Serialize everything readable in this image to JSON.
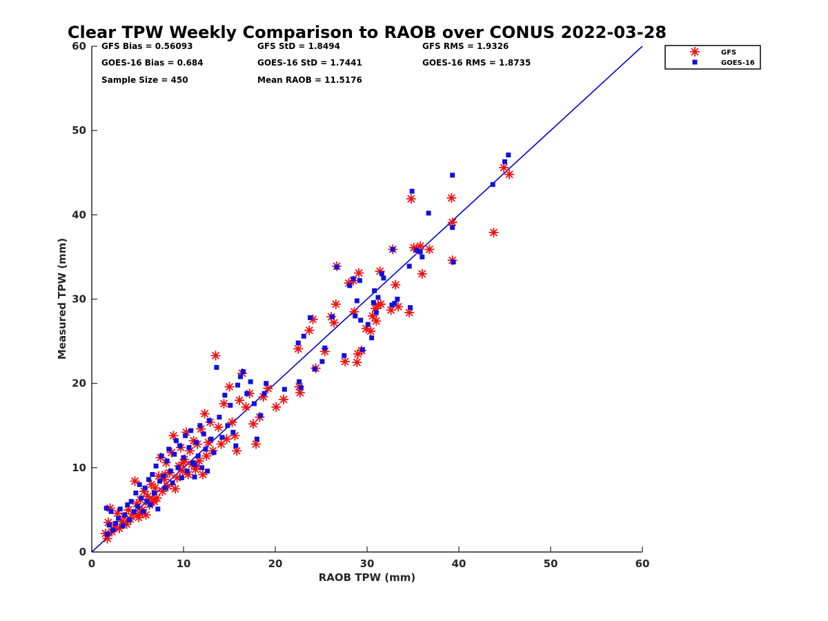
{
  "chart_data": {
    "type": "scatter",
    "title": "Clear TPW Weekly Comparison to RAOB over CONUS 2022-03-28",
    "xlabel": "RAOB TPW (mm)",
    "ylabel": "Measured TPW (mm)",
    "xlim": [
      0,
      60
    ],
    "ylim": [
      0,
      60
    ],
    "xticks": [
      "0",
      "10",
      "20",
      "30",
      "40",
      "50",
      "60"
    ],
    "yticks": [
      "0",
      "10",
      "20",
      "30",
      "40",
      "50",
      "60"
    ],
    "grid": false,
    "legend_position": "top-right outside",
    "reference_line": {
      "type": "identity",
      "color": "#0000cc"
    },
    "stats": {
      "gfs_bias": "GFS Bias = 0.56093",
      "goes_bias": "GOES-16 Bias = 0.684",
      "sample_size": "Sample Size = 450",
      "gfs_std": "GFS StD = 1.8494",
      "goes_std": "GOES-16 StD = 1.7441",
      "mean_raob": "Mean RAOB = 11.5176",
      "gfs_rms": "GFS RMS = 1.9326",
      "goes_rms": "GOES-16 RMS = 1.8735"
    },
    "series": [
      {
        "name": "GFS",
        "marker": "asterisk",
        "color": "#ee1111",
        "points": [
          [
            1.5,
            2.2
          ],
          [
            1.7,
            1.6
          ],
          [
            1.8,
            3.5
          ],
          [
            2.0,
            5.2
          ],
          [
            2.2,
            2.4
          ],
          [
            2.5,
            3.0
          ],
          [
            2.8,
            4.6
          ],
          [
            3.0,
            2.8
          ],
          [
            3.3,
            3.6
          ],
          [
            3.5,
            4.2
          ],
          [
            3.8,
            3.3
          ],
          [
            4.0,
            5.0
          ],
          [
            4.2,
            3.9
          ],
          [
            4.5,
            4.5
          ],
          [
            4.7,
            8.4
          ],
          [
            4.9,
            5.7
          ],
          [
            5.1,
            4.1
          ],
          [
            5.3,
            6.2
          ],
          [
            5.5,
            5.0
          ],
          [
            5.7,
            7.2
          ],
          [
            5.9,
            4.4
          ],
          [
            6.1,
            6.6
          ],
          [
            6.3,
            5.6
          ],
          [
            6.5,
            8.0
          ],
          [
            6.7,
            6.1
          ],
          [
            6.9,
            7.6
          ],
          [
            7.1,
            6.4
          ],
          [
            7.3,
            9.0
          ],
          [
            7.5,
            11.2
          ],
          [
            7.7,
            7.2
          ],
          [
            7.9,
            8.6
          ],
          [
            8.1,
            10.6
          ],
          [
            8.3,
            7.8
          ],
          [
            8.5,
            9.4
          ],
          [
            8.7,
            11.8
          ],
          [
            8.9,
            13.8
          ],
          [
            9.1,
            7.5
          ],
          [
            9.3,
            8.8
          ],
          [
            9.5,
            10.2
          ],
          [
            9.7,
            12.4
          ],
          [
            9.9,
            9.6
          ],
          [
            10.1,
            11.0
          ],
          [
            10.3,
            14.2
          ],
          [
            10.5,
            9.2
          ],
          [
            10.7,
            12.0
          ],
          [
            10.9,
            10.4
          ],
          [
            11.1,
            13.2
          ],
          [
            11.3,
            9.8
          ],
          [
            11.5,
            12.8
          ],
          [
            11.7,
            10.8
          ],
          [
            11.9,
            14.6
          ],
          [
            12.1,
            9.2
          ],
          [
            12.3,
            16.4
          ],
          [
            12.5,
            11.4
          ],
          [
            12.7,
            13.0
          ],
          [
            12.9,
            15.4
          ],
          [
            13.2,
            12.0
          ],
          [
            13.5,
            23.3
          ],
          [
            13.8,
            14.8
          ],
          [
            14.1,
            12.8
          ],
          [
            14.4,
            17.6
          ],
          [
            14.7,
            13.4
          ],
          [
            15.0,
            19.6
          ],
          [
            15.3,
            15.4
          ],
          [
            15.6,
            13.8
          ],
          [
            15.8,
            12.0
          ],
          [
            16.1,
            18.0
          ],
          [
            16.4,
            21.2
          ],
          [
            16.8,
            17.2
          ],
          [
            17.2,
            18.8
          ],
          [
            17.6,
            15.2
          ],
          [
            17.9,
            12.8
          ],
          [
            18.3,
            16.0
          ],
          [
            18.7,
            18.4
          ],
          [
            19.2,
            19.4
          ],
          [
            20.1,
            17.2
          ],
          [
            20.9,
            18.1
          ],
          [
            22.5,
            24.1
          ],
          [
            22.6,
            19.6
          ],
          [
            22.7,
            18.9
          ],
          [
            23.7,
            26.3
          ],
          [
            24.1,
            27.6
          ],
          [
            24.4,
            21.8
          ],
          [
            25.4,
            23.8
          ],
          [
            26.1,
            27.9
          ],
          [
            26.4,
            27.2
          ],
          [
            26.6,
            29.4
          ],
          [
            26.7,
            33.9
          ],
          [
            27.6,
            22.6
          ],
          [
            28.0,
            31.9
          ],
          [
            28.5,
            32.2
          ],
          [
            28.6,
            28.5
          ],
          [
            28.9,
            22.5
          ],
          [
            29.0,
            23.5
          ],
          [
            29.1,
            33.1
          ],
          [
            29.4,
            23.9
          ],
          [
            29.9,
            26.5
          ],
          [
            30.4,
            26.2
          ],
          [
            30.6,
            28.0
          ],
          [
            30.9,
            28.9
          ],
          [
            31.0,
            27.4
          ],
          [
            31.2,
            29.3
          ],
          [
            31.4,
            33.3
          ],
          [
            31.5,
            29.4
          ],
          [
            32.6,
            28.7
          ],
          [
            32.8,
            35.9
          ],
          [
            33.1,
            31.7
          ],
          [
            33.4,
            29.1
          ],
          [
            34.6,
            28.4
          ],
          [
            35.1,
            36.1
          ],
          [
            35.4,
            35.9
          ],
          [
            35.8,
            36.3
          ],
          [
            36.0,
            33.0
          ],
          [
            36.8,
            35.9
          ],
          [
            39.2,
            42.0
          ],
          [
            39.3,
            39.1
          ],
          [
            39.3,
            34.6
          ],
          [
            43.8,
            37.9
          ],
          [
            44.9,
            45.6
          ],
          [
            45.5,
            44.8
          ],
          [
            34.8,
            41.9
          ],
          [
            11.4,
            10.2
          ],
          [
            10.0,
            10.6
          ],
          [
            8.0,
            9.2
          ],
          [
            6.8,
            6.0
          ],
          [
            5.2,
            4.6
          ]
        ]
      },
      {
        "name": "GOES-16",
        "marker": "square",
        "color": "#1111dd",
        "points": [
          [
            1.6,
            5.2
          ],
          [
            1.7,
            2.1
          ],
          [
            1.9,
            3.2
          ],
          [
            2.1,
            4.8
          ],
          [
            2.3,
            2.6
          ],
          [
            2.6,
            3.4
          ],
          [
            2.9,
            4.0
          ],
          [
            3.1,
            5.1
          ],
          [
            3.4,
            3.1
          ],
          [
            3.6,
            4.4
          ],
          [
            3.9,
            5.6
          ],
          [
            4.1,
            3.8
          ],
          [
            4.3,
            6.0
          ],
          [
            4.6,
            4.8
          ],
          [
            4.8,
            7.0
          ],
          [
            5.0,
            5.4
          ],
          [
            5.2,
            8.0
          ],
          [
            5.4,
            6.4
          ],
          [
            5.6,
            4.8
          ],
          [
            5.8,
            7.6
          ],
          [
            6.0,
            6.0
          ],
          [
            6.2,
            8.6
          ],
          [
            6.4,
            5.6
          ],
          [
            6.6,
            9.2
          ],
          [
            6.8,
            7.0
          ],
          [
            7.0,
            10.2
          ],
          [
            7.2,
            5.1
          ],
          [
            7.4,
            8.4
          ],
          [
            7.6,
            11.4
          ],
          [
            7.8,
            9.0
          ],
          [
            8.0,
            7.6
          ],
          [
            8.2,
            10.8
          ],
          [
            8.4,
            12.2
          ],
          [
            8.6,
            9.6
          ],
          [
            8.8,
            8.2
          ],
          [
            9.0,
            11.6
          ],
          [
            9.2,
            13.2
          ],
          [
            9.4,
            10.0
          ],
          [
            9.6,
            12.6
          ],
          [
            9.8,
            8.8
          ],
          [
            10.0,
            11.2
          ],
          [
            10.2,
            13.8
          ],
          [
            10.4,
            9.6
          ],
          [
            10.6,
            12.4
          ],
          [
            10.8,
            14.4
          ],
          [
            11.0,
            10.6
          ],
          [
            11.2,
            8.9
          ],
          [
            11.4,
            13.0
          ],
          [
            11.6,
            11.4
          ],
          [
            11.8,
            15.0
          ],
          [
            12.0,
            10.0
          ],
          [
            12.2,
            14.0
          ],
          [
            12.4,
            12.2
          ],
          [
            12.6,
            9.6
          ],
          [
            12.8,
            15.6
          ],
          [
            13.0,
            13.4
          ],
          [
            13.3,
            11.8
          ],
          [
            13.6,
            21.9
          ],
          [
            13.9,
            16.0
          ],
          [
            14.2,
            13.6
          ],
          [
            14.5,
            18.6
          ],
          [
            14.8,
            15.0
          ],
          [
            15.1,
            17.4
          ],
          [
            15.4,
            14.2
          ],
          [
            15.7,
            12.6
          ],
          [
            15.9,
            19.8
          ],
          [
            16.2,
            20.8
          ],
          [
            16.5,
            21.4
          ],
          [
            16.9,
            18.8
          ],
          [
            17.3,
            20.2
          ],
          [
            17.7,
            17.6
          ],
          [
            18.0,
            13.4
          ],
          [
            18.4,
            16.2
          ],
          [
            18.8,
            18.8
          ],
          [
            19.0,
            20.0
          ],
          [
            21.0,
            19.3
          ],
          [
            22.5,
            24.8
          ],
          [
            22.6,
            20.2
          ],
          [
            22.8,
            19.5
          ],
          [
            23.1,
            25.6
          ],
          [
            23.8,
            27.8
          ],
          [
            24.3,
            21.7
          ],
          [
            25.1,
            22.6
          ],
          [
            25.4,
            24.2
          ],
          [
            26.2,
            27.9
          ],
          [
            26.7,
            33.8
          ],
          [
            27.5,
            23.3
          ],
          [
            28.1,
            31.6
          ],
          [
            28.5,
            32.4
          ],
          [
            28.7,
            28.0
          ],
          [
            28.9,
            29.8
          ],
          [
            29.2,
            32.2
          ],
          [
            29.3,
            27.5
          ],
          [
            29.5,
            24.0
          ],
          [
            30.1,
            27.0
          ],
          [
            30.5,
            25.4
          ],
          [
            30.7,
            29.6
          ],
          [
            30.8,
            31.0
          ],
          [
            31.0,
            28.4
          ],
          [
            31.2,
            30.2
          ],
          [
            31.6,
            33.0
          ],
          [
            31.8,
            32.5
          ],
          [
            32.7,
            29.3
          ],
          [
            32.8,
            35.9
          ],
          [
            33.0,
            29.5
          ],
          [
            33.3,
            30.0
          ],
          [
            34.6,
            33.9
          ],
          [
            34.7,
            29.0
          ],
          [
            34.9,
            42.8
          ],
          [
            35.4,
            35.8
          ],
          [
            35.8,
            35.6
          ],
          [
            36.0,
            35.0
          ],
          [
            36.7,
            40.2
          ],
          [
            39.3,
            44.7
          ],
          [
            39.3,
            38.5
          ],
          [
            39.4,
            34.4
          ],
          [
            43.7,
            43.6
          ],
          [
            45.0,
            46.3
          ],
          [
            45.4,
            47.1
          ],
          [
            11.2,
            10.4
          ]
        ]
      }
    ]
  }
}
